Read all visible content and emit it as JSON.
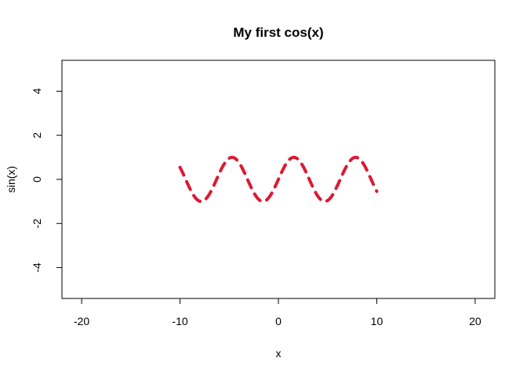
{
  "chart_data": {
    "type": "line",
    "title": "My first cos(x)",
    "xlabel": "x",
    "ylabel": "sin(x)",
    "xlim": [
      -22,
      22
    ],
    "ylim": [
      -5.4,
      5.4
    ],
    "xticks": [
      -20,
      -10,
      0,
      10,
      20
    ],
    "yticks": [
      -4,
      -2,
      0,
      2,
      4
    ],
    "xtick_labels": [
      "-20",
      "-10",
      "0",
      "10",
      "20"
    ],
    "ytick_labels": [
      "-4",
      "-2",
      "0",
      "2",
      "4"
    ],
    "grid": false,
    "line_style": "dashed",
    "series": [
      {
        "color": "#dc1a32",
        "function": "sin",
        "x_range": [
          -10,
          10
        ],
        "x": [
          -10,
          -9.5,
          -9,
          -8.5,
          -8,
          -7.5,
          -7,
          -6.5,
          -6,
          -5.5,
          -5,
          -4.5,
          -4,
          -3.5,
          -3,
          -2.5,
          -2,
          -1.5,
          -1,
          -0.5,
          0,
          0.5,
          1,
          1.5,
          2,
          2.5,
          3,
          3.5,
          4,
          4.5,
          5,
          5.5,
          6,
          6.5,
          7,
          7.5,
          8,
          8.5,
          9,
          9.5,
          10
        ],
        "y": [
          0.544,
          0.075,
          -0.412,
          -0.798,
          -0.989,
          -0.938,
          -0.657,
          -0.215,
          0.279,
          0.706,
          0.959,
          0.978,
          0.757,
          0.351,
          -0.141,
          -0.598,
          -0.909,
          -0.997,
          -0.841,
          -0.479,
          0,
          0.479,
          0.841,
          0.997,
          0.909,
          0.598,
          0.141,
          -0.351,
          -0.757,
          -0.978,
          -0.959,
          -0.706,
          -0.279,
          0.215,
          0.657,
          0.938,
          0.989,
          0.798,
          0.412,
          -0.075,
          -0.544
        ]
      }
    ]
  }
}
